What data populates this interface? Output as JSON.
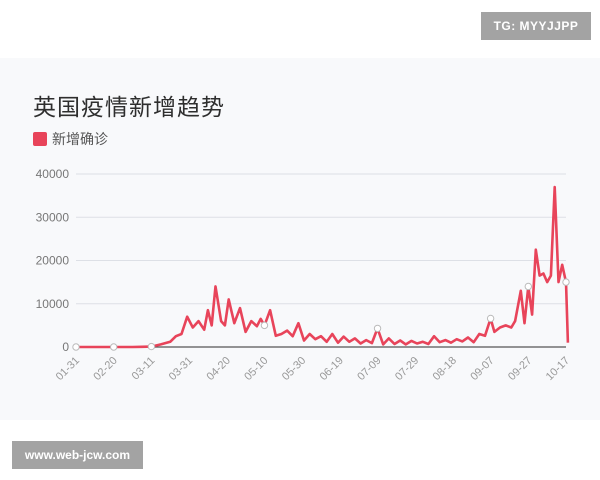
{
  "watermark_top": "TG: MYYJJPP",
  "watermark_bottom": "www.web-jcw.com",
  "chart_data": {
    "type": "line",
    "title": "英国疫情新增趋势",
    "legend": [
      {
        "name": "新增确诊",
        "color": "#e8445a"
      }
    ],
    "legend_position": "top-left",
    "grid": true,
    "xlabel": "",
    "ylabel": "",
    "ylim": [
      0,
      40000
    ],
    "yticks": [
      0,
      10000,
      20000,
      30000,
      40000
    ],
    "xticks": [
      "01-31",
      "02-20",
      "03-11",
      "03-31",
      "04-20",
      "05-10",
      "05-30",
      "06-19",
      "07-09",
      "07-29",
      "08-18",
      "09-07",
      "09-27",
      "10-17"
    ],
    "series": [
      {
        "name": "新增确诊",
        "color": "#e8445a",
        "x": [
          "01-31",
          "02-05",
          "02-10",
          "02-15",
          "02-20",
          "02-25",
          "03-01",
          "03-06",
          "03-11",
          "03-16",
          "03-21",
          "03-24",
          "03-27",
          "03-30",
          "04-02",
          "04-05",
          "04-08",
          "04-10",
          "04-12",
          "04-14",
          "04-17",
          "04-19",
          "04-21",
          "04-24",
          "04-27",
          "04-30",
          "05-03",
          "05-06",
          "05-08",
          "05-10",
          "05-13",
          "05-16",
          "05-19",
          "05-22",
          "05-25",
          "05-28",
          "05-31",
          "06-03",
          "06-06",
          "06-09",
          "06-12",
          "06-15",
          "06-18",
          "06-21",
          "06-24",
          "06-27",
          "06-30",
          "07-03",
          "07-06",
          "07-09",
          "07-12",
          "07-15",
          "07-18",
          "07-21",
          "07-24",
          "07-27",
          "07-30",
          "08-02",
          "08-05",
          "08-08",
          "08-11",
          "08-14",
          "08-17",
          "08-20",
          "08-23",
          "08-26",
          "08-29",
          "09-01",
          "09-04",
          "09-07",
          "09-09",
          "09-12",
          "09-15",
          "09-18",
          "09-20",
          "09-23",
          "09-25",
          "09-27",
          "09-29",
          "10-01",
          "10-03",
          "10-05",
          "10-07",
          "10-09",
          "10-11",
          "10-13",
          "10-15",
          "10-17",
          "10-18"
        ],
        "values": [
          0,
          0,
          0,
          0,
          0,
          0,
          0,
          50,
          100,
          600,
          1200,
          2500,
          3000,
          7000,
          4500,
          6000,
          4000,
          8500,
          5000,
          14000,
          6000,
          5000,
          11000,
          5500,
          9000,
          3500,
          6000,
          4800,
          6500,
          5000,
          8500,
          2600,
          3000,
          3800,
          2500,
          5500,
          1500,
          3000,
          1800,
          2500,
          1200,
          3000,
          1000,
          2400,
          1200,
          2000,
          800,
          1600,
          900,
          4300,
          600,
          2000,
          700,
          1500,
          600,
          1400,
          800,
          1200,
          700,
          2500,
          1100,
          1600,
          1000,
          1800,
          1300,
          2200,
          1100,
          3000,
          2600,
          6600,
          3500,
          4500,
          5000,
          4500,
          6000,
          13000,
          5500,
          14000,
          7500,
          22500,
          16500,
          17000,
          15000,
          16500,
          37000,
          15000,
          19000,
          15000,
          1000
        ]
      }
    ]
  }
}
